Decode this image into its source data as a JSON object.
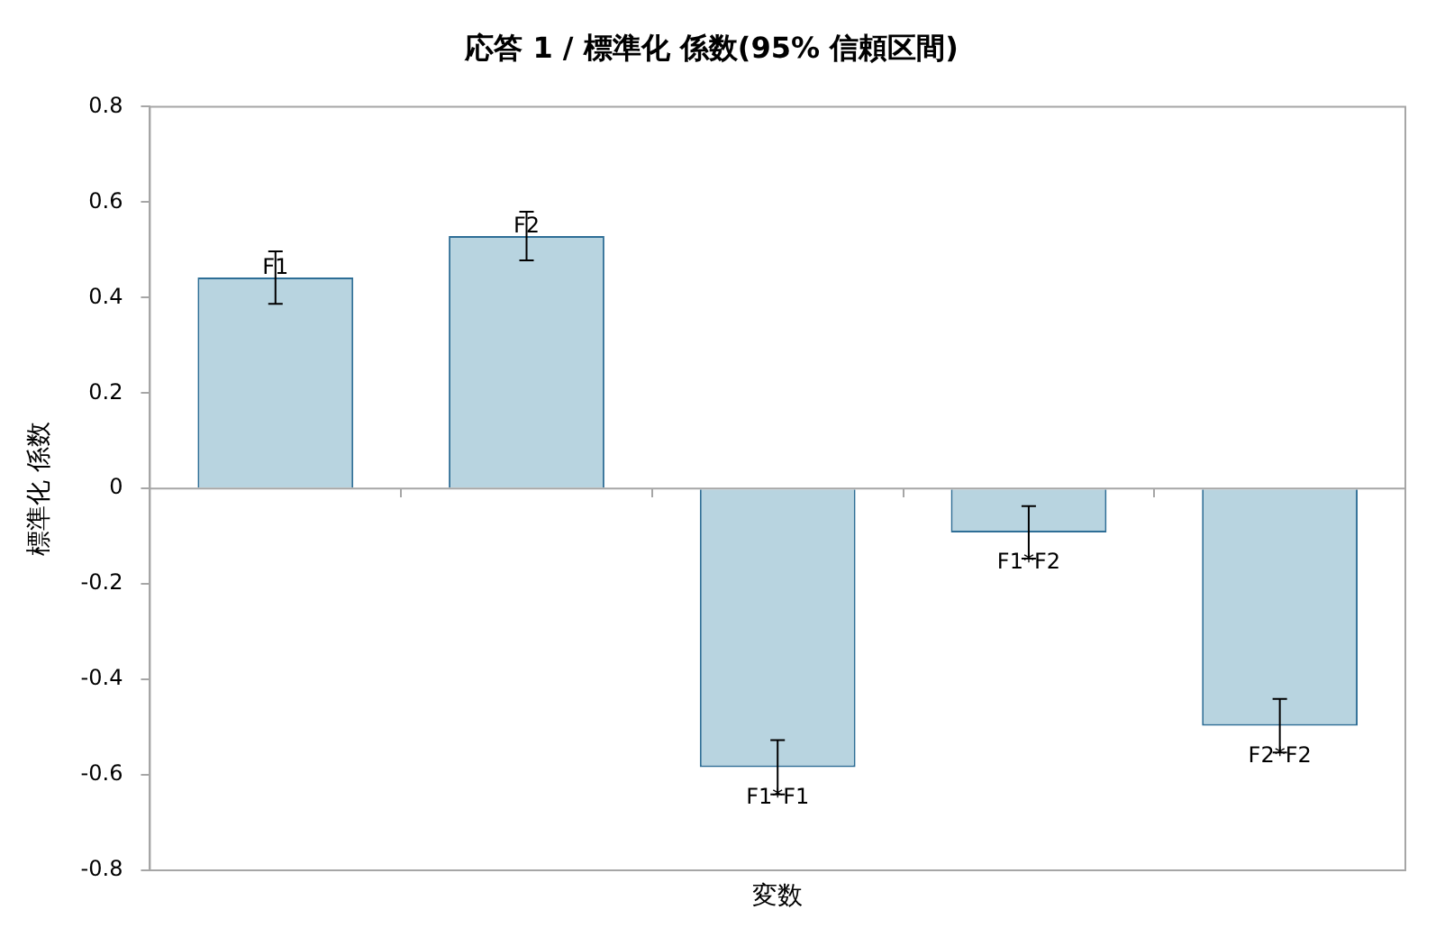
{
  "chart_data": {
    "type": "bar",
    "title": "応答 1 / 標準化 係数(95% 信頼区間)",
    "xlabel": "変数",
    "ylabel": "標準化 係数",
    "categories": [
      "F1",
      "F2",
      "F1*F1",
      "F1*F2",
      "F2*F2"
    ],
    "series": [
      {
        "color": "#b8d4e0",
        "values": [
          0.442,
          0.529,
          -0.584,
          -0.092,
          -0.497
        ],
        "errors": [
          0.055,
          0.051,
          0.057,
          0.055,
          0.056
        ]
      }
    ],
    "ylim": [
      -0.8,
      0.8
    ],
    "yticks": [
      -0.8,
      -0.6,
      -0.4,
      -0.2,
      0,
      0.2,
      0.4,
      0.6,
      0.8
    ],
    "ref_lines": [
      {
        "axis": "y",
        "value": 0,
        "color": "#a6a6a6"
      }
    ],
    "grid": false,
    "legend": false,
    "tick_labels": "y"
  }
}
